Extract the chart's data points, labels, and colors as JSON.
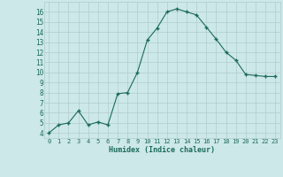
{
  "x": [
    0,
    1,
    2,
    3,
    4,
    5,
    6,
    7,
    8,
    9,
    10,
    11,
    12,
    13,
    14,
    15,
    16,
    17,
    18,
    19,
    20,
    21,
    22,
    23
  ],
  "y": [
    4.0,
    4.8,
    5.0,
    6.2,
    4.8,
    5.1,
    4.8,
    7.9,
    8.0,
    10.0,
    13.2,
    14.4,
    16.0,
    16.3,
    16.0,
    15.7,
    14.5,
    13.3,
    12.0,
    11.2,
    9.8,
    9.7,
    9.6,
    9.6
  ],
  "xlabel": "Humidex (Indice chaleur)",
  "ylim": [
    3.5,
    17.0
  ],
  "xlim": [
    -0.5,
    23.5
  ],
  "yticks": [
    4,
    5,
    6,
    7,
    8,
    9,
    10,
    11,
    12,
    13,
    14,
    15,
    16
  ],
  "xticks": [
    0,
    1,
    2,
    3,
    4,
    5,
    6,
    7,
    8,
    9,
    10,
    11,
    12,
    13,
    14,
    15,
    16,
    17,
    18,
    19,
    20,
    21,
    22,
    23
  ],
  "line_color": "#1a6b5a",
  "marker_color": "#1a6b5a",
  "bg_color": "#cde8e8",
  "grid_color": "#b0cccc",
  "tick_label_color": "#1a6b5a",
  "xlabel_color": "#1a6b5a"
}
